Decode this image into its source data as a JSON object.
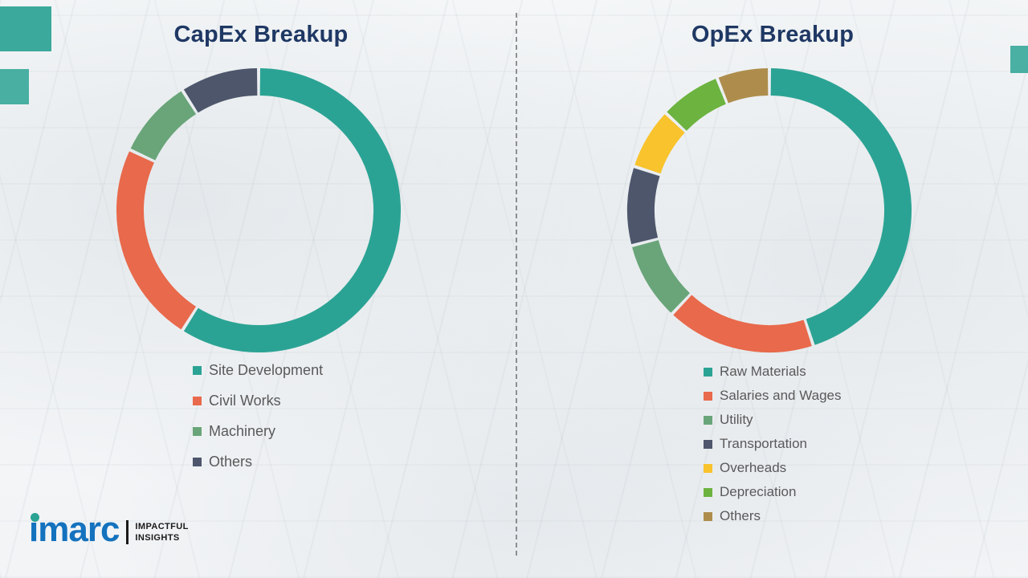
{
  "chart_data": [
    {
      "type": "pie",
      "variant": "donut",
      "title": "CapEx Breakup",
      "legend_position": "bottom-left",
      "values_note": "percent shares estimated from arc angles; no numeric labels shown in image",
      "segments": [
        {
          "label": "Site Development",
          "value": 59,
          "color": "#2BA394"
        },
        {
          "label": "Civil Works",
          "value": 23,
          "color": "#E8694B"
        },
        {
          "label": "Machinery",
          "value": 9,
          "color": "#69A579"
        },
        {
          "label": "Others",
          "value": 9,
          "color": "#4D566B"
        }
      ]
    },
    {
      "type": "pie",
      "variant": "donut",
      "title": "OpEx Breakup",
      "legend_position": "bottom-left",
      "values_note": "percent shares estimated from arc angles; no numeric labels shown in image",
      "segments": [
        {
          "label": "Raw Materials",
          "value": 45,
          "color": "#2BA394"
        },
        {
          "label": "Salaries and Wages",
          "value": 17,
          "color": "#E8694B"
        },
        {
          "label": "Utility",
          "value": 9,
          "color": "#69A579"
        },
        {
          "label": "Transportation",
          "value": 9,
          "color": "#4D566B"
        },
        {
          "label": "Overheads",
          "value": 7,
          "color": "#F8C32C"
        },
        {
          "label": "Depreciation",
          "value": 7,
          "color": "#6CB33F"
        },
        {
          "label": "Others",
          "value": 6,
          "color": "#AE8D4C"
        }
      ]
    }
  ],
  "logo": {
    "brand": "imarc",
    "tagline_line1": "IMPACTFUL",
    "tagline_line2": "INSIGHTS",
    "brand_color": "#1472BE",
    "dot_color": "#2BA394"
  },
  "colors": {
    "title_text": "#1F3864",
    "legend_text": "#595959",
    "divider": "#6f6f6f",
    "background_accent": "#2BA394"
  }
}
